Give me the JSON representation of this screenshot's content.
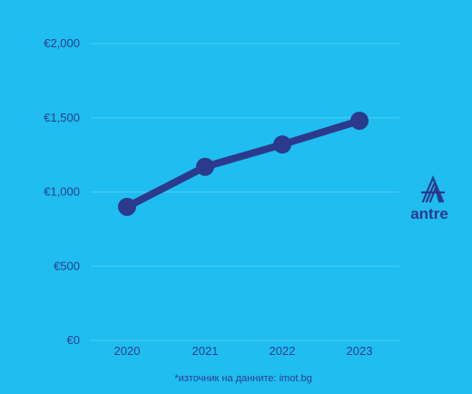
{
  "chart_data": {
    "type": "line",
    "title": "",
    "xlabel": "",
    "ylabel": "",
    "categories": [
      "2020",
      "2021",
      "2022",
      "2023"
    ],
    "series": [
      {
        "values": [
          900,
          1170,
          1320,
          1480
        ]
      }
    ],
    "ylim": [
      0,
      2000
    ],
    "yticks": [
      0,
      500,
      1000,
      1500,
      2000
    ],
    "ytick_labels": [
      "€0",
      "€500",
      "€1,000",
      "€1,500",
      "€2,000"
    ],
    "grid": true,
    "colors": {
      "line": "#2b3a8c",
      "grid": "#4fcdf3",
      "background": "#1fbdf0"
    }
  },
  "source_note": "*източник на данните: imot.bg",
  "brand": {
    "name": "antre",
    "logo_icon": "antre-logo-icon"
  }
}
